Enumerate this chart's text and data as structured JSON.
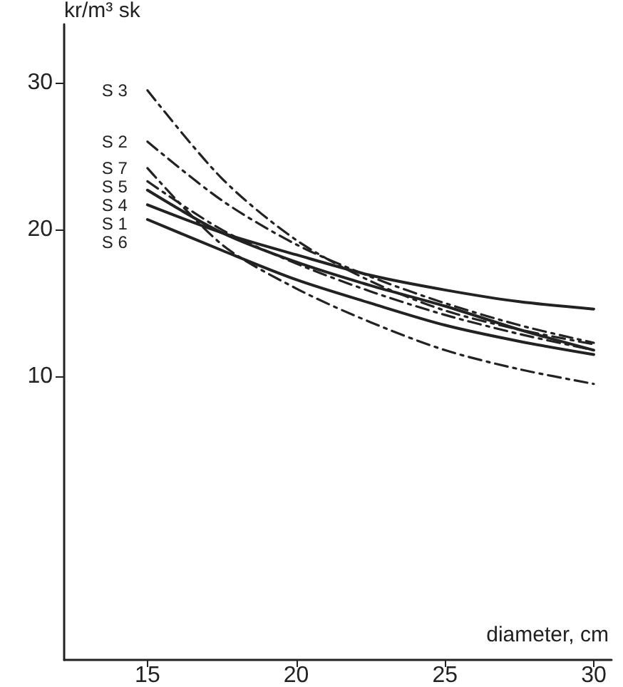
{
  "chart_data": {
    "type": "line",
    "ylabel": "kr/m³ sk",
    "xlabel": "diameter, cm",
    "x": [
      15,
      17.5,
      20,
      22.5,
      25,
      27.5,
      30
    ],
    "series": [
      {
        "name": "S 3",
        "color": "#222222",
        "line_style": "dashdot",
        "values": [
          29.5,
          23.5,
          19.3,
          16.5,
          14.5,
          13.2,
          12.2
        ]
      },
      {
        "name": "S 2",
        "color": "#222222",
        "line_style": "dashdot",
        "values": [
          26,
          22,
          19,
          16.8,
          15,
          13.5,
          12.3
        ]
      },
      {
        "name": "S 7",
        "color": "#222222",
        "line_style": "dashdot",
        "values": [
          24.2,
          19,
          16,
          13.7,
          11.8,
          10.5,
          9.5
        ]
      },
      {
        "name": "S 5",
        "color": "#222222",
        "line_style": "dashdot",
        "values": [
          23.3,
          20,
          17.7,
          15.8,
          14.2,
          12.9,
          11.8
        ]
      },
      {
        "name": "S 4",
        "color": "#222222",
        "line_style": "solid",
        "values": [
          22.7,
          19.8,
          17.8,
          16.2,
          14.8,
          13.2,
          11.8
        ]
      },
      {
        "name": "S 1",
        "color": "#222222",
        "line_style": "solid",
        "values": [
          21.7,
          19.8,
          18.3,
          16.9,
          15.9,
          15.1,
          14.6
        ]
      },
      {
        "name": "S 6",
        "color": "#222222",
        "line_style": "solid",
        "values": [
          20.7,
          18.6,
          16.6,
          15,
          13.5,
          12.4,
          11.5
        ]
      }
    ],
    "xlim": [
      12.2,
      30.6
    ],
    "ylim": [
      -9.3,
      34
    ],
    "xticks": [
      15,
      20,
      25,
      30
    ],
    "yticks": [
      10,
      20,
      30
    ],
    "grid": false,
    "legend": false,
    "marker": "none"
  }
}
